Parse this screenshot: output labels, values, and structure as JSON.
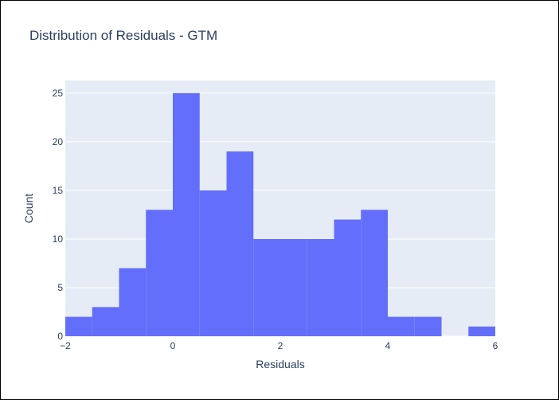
{
  "chart_data": {
    "type": "histogram",
    "title": "Distribution of Residuals - GTM",
    "xlabel": "Residuals",
    "ylabel": "Count",
    "xlim": [
      -2,
      6
    ],
    "ylim": [
      0,
      26.3
    ],
    "bin_width": 0.5,
    "bins": [
      {
        "start": -2.0,
        "end": -1.5,
        "count": 2
      },
      {
        "start": -1.5,
        "end": -1.0,
        "count": 3
      },
      {
        "start": -1.0,
        "end": -0.5,
        "count": 7
      },
      {
        "start": -0.5,
        "end": 0.0,
        "count": 13
      },
      {
        "start": 0.0,
        "end": 0.5,
        "count": 25
      },
      {
        "start": 0.5,
        "end": 1.0,
        "count": 15
      },
      {
        "start": 1.0,
        "end": 1.5,
        "count": 19
      },
      {
        "start": 1.5,
        "end": 2.0,
        "count": 10
      },
      {
        "start": 2.0,
        "end": 2.5,
        "count": 10
      },
      {
        "start": 2.5,
        "end": 3.0,
        "count": 10
      },
      {
        "start": 3.0,
        "end": 3.5,
        "count": 12
      },
      {
        "start": 3.5,
        "end": 4.0,
        "count": 13
      },
      {
        "start": 4.0,
        "end": 4.5,
        "count": 2
      },
      {
        "start": 4.5,
        "end": 5.0,
        "count": 2
      },
      {
        "start": 5.0,
        "end": 5.5,
        "count": 0
      },
      {
        "start": 5.5,
        "end": 6.0,
        "count": 1
      }
    ],
    "x_ticks": [
      -2,
      0,
      2,
      4,
      6
    ],
    "x_tick_labels": [
      "−2",
      "0",
      "2",
      "4",
      "6"
    ],
    "y_ticks": [
      0,
      5,
      10,
      15,
      20,
      25
    ],
    "y_tick_labels": [
      "0",
      "5",
      "10",
      "15",
      "20",
      "25"
    ],
    "grid": true,
    "colors": {
      "bar": "#636efa",
      "plot_bg": "#e5ecf6",
      "grid": "#ffffff",
      "text": "#2a3f5f"
    }
  }
}
